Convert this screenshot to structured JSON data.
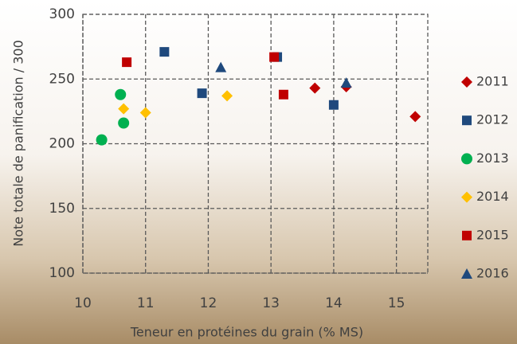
{
  "chart_data": {
    "type": "scatter",
    "x_label": "Teneur en protéines du grain (% MS)",
    "y_label": "Note totale de panification / 300",
    "xlim": [
      10,
      15.5
    ],
    "xticks": [
      10,
      11,
      12,
      13,
      14,
      15
    ],
    "ylim": [
      100,
      300
    ],
    "yticks": [
      100,
      150,
      200,
      250,
      300
    ],
    "grid": true,
    "legend": "right",
    "series": [
      {
        "name": "2011",
        "color": "#c00000",
        "marker": "diamond",
        "x": [
          13.7,
          14.2,
          15.3
        ],
        "values": [
          243,
          244,
          221
        ]
      },
      {
        "name": "2012",
        "color": "#1f497d",
        "marker": "square",
        "x": [
          11.3,
          11.9,
          13.1,
          14.0
        ],
        "values": [
          271,
          239,
          267,
          230
        ]
      },
      {
        "name": "2013",
        "color": "#00b050",
        "marker": "circle",
        "x": [
          10.3,
          10.6,
          10.65
        ],
        "values": [
          203,
          238,
          216
        ]
      },
      {
        "name": "2014",
        "color": "#ffc000",
        "marker": "diamond",
        "x": [
          10.65,
          11.0,
          12.3
        ],
        "values": [
          227,
          224,
          237
        ]
      },
      {
        "name": "2015",
        "color": "#c00000",
        "marker": "square",
        "x": [
          10.7,
          13.05,
          13.2
        ],
        "values": [
          263,
          267,
          238
        ]
      },
      {
        "name": "2016",
        "color": "#1f497d",
        "marker": "triangle",
        "x": [
          12.2,
          14.2
        ],
        "values": [
          259,
          247
        ]
      }
    ]
  }
}
